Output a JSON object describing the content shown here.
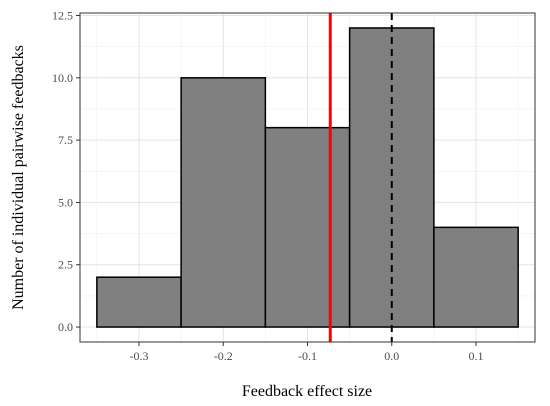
{
  "chart_data": {
    "type": "bar",
    "subtype": "histogram",
    "xlabel": "Feedback effect size",
    "ylabel": "Number of individual pairwise feedbacks",
    "xlim": [
      -0.37,
      0.17
    ],
    "ylim": [
      -0.6,
      12.6
    ],
    "x_ticks": [
      -0.3,
      -0.2,
      -0.1,
      0.0,
      0.1
    ],
    "x_tick_labels": [
      "-0.3",
      "-0.2",
      "-0.1",
      "0.0",
      "0.1"
    ],
    "y_ticks": [
      0,
      2.5,
      5,
      7.5,
      10,
      12.5
    ],
    "y_tick_labels": [
      "0.0",
      "2.5",
      "5.0",
      "7.5",
      "10.0",
      "12.5"
    ],
    "bins": [
      {
        "x0": -0.35,
        "x1": -0.25,
        "count": 2
      },
      {
        "x0": -0.25,
        "x1": -0.15,
        "count": 10
      },
      {
        "x0": -0.15,
        "x1": -0.05,
        "count": 8
      },
      {
        "x0": -0.05,
        "x1": 0.05,
        "count": 12
      },
      {
        "x0": 0.05,
        "x1": 0.15,
        "count": 4
      }
    ],
    "reference_lines": [
      {
        "x": -0.073,
        "style": "solid",
        "color": "#ff0000"
      },
      {
        "x": 0.0,
        "style": "dashed",
        "color": "#000000"
      }
    ],
    "grid": true,
    "bar_fill": "#808080",
    "bar_stroke": "#000000"
  }
}
